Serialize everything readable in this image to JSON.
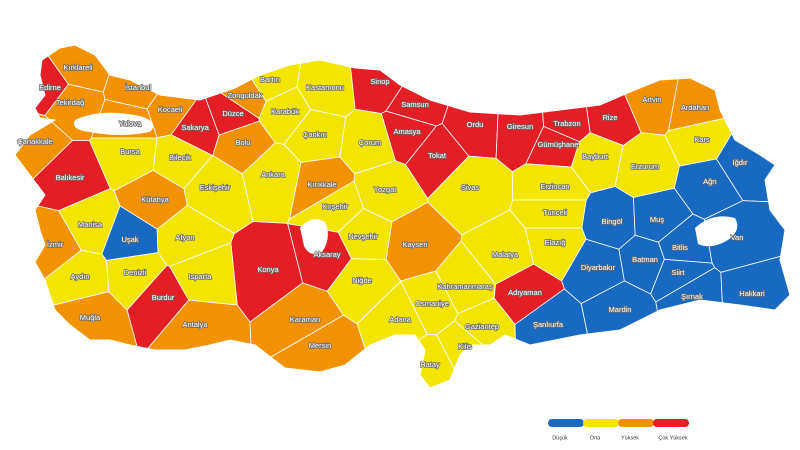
{
  "map": {
    "provinces": [
      {
        "name": "Edirne",
        "color": "#e31e24"
      },
      {
        "name": "Kırklareli",
        "color": "#f39200"
      },
      {
        "name": "İstanbul",
        "color": "#f39200"
      },
      {
        "name": "Tekirdağ",
        "color": "#f39200"
      },
      {
        "name": "Yalova",
        "color": "#f39200"
      },
      {
        "name": "Kocaeli",
        "color": "#f39200"
      },
      {
        "name": "Sakarya",
        "color": "#e31e24"
      },
      {
        "name": "Düzce",
        "color": "#e31e24"
      },
      {
        "name": "Zonguldak",
        "color": "#f39200"
      },
      {
        "name": "Bartın",
        "color": "#f4e500"
      },
      {
        "name": "Karabük",
        "color": "#f4e500"
      },
      {
        "name": "Kastamonu",
        "color": "#f4e500"
      },
      {
        "name": "Sinop",
        "color": "#e31e24"
      },
      {
        "name": "Samsun",
        "color": "#e31e24"
      },
      {
        "name": "Ordu",
        "color": "#e31e24"
      },
      {
        "name": "Giresun",
        "color": "#e31e24"
      },
      {
        "name": "Trabzon",
        "color": "#e31e24"
      },
      {
        "name": "Rize",
        "color": "#e31e24"
      },
      {
        "name": "Artvin",
        "color": "#f39200"
      },
      {
        "name": "Ardahan",
        "color": "#f39200"
      },
      {
        "name": "Kars",
        "color": "#f4e500"
      },
      {
        "name": "Çanakkale",
        "color": "#f39200"
      },
      {
        "name": "Bursa",
        "color": "#f4e500"
      },
      {
        "name": "Bilecik",
        "color": "#f4e500"
      },
      {
        "name": "Bolu",
        "color": "#f39200"
      },
      {
        "name": "Çankırı",
        "color": "#f4e500"
      },
      {
        "name": "Çorum",
        "color": "#f4e500"
      },
      {
        "name": "Amasya",
        "color": "#e31e24"
      },
      {
        "name": "Tokat",
        "color": "#e31e24"
      },
      {
        "name": "Gümüşhane",
        "color": "#e31e24"
      },
      {
        "name": "Bayburt",
        "color": "#f4e500"
      },
      {
        "name": "Erzurum",
        "color": "#f4e500"
      },
      {
        "name": "Iğdır",
        "color": "#1769c2"
      },
      {
        "name": "Ağrı",
        "color": "#1769c2"
      },
      {
        "name": "Balıkesir",
        "color": "#e31e24"
      },
      {
        "name": "Eskişehir",
        "color": "#f4e500"
      },
      {
        "name": "Ankara",
        "color": "#f4e500"
      },
      {
        "name": "Kırıkkale",
        "color": "#f39200"
      },
      {
        "name": "Yozgat",
        "color": "#f4e500"
      },
      {
        "name": "Sivas",
        "color": "#f4e500"
      },
      {
        "name": "Erzincan",
        "color": "#f4e500"
      },
      {
        "name": "Kütahya",
        "color": "#f39200"
      },
      {
        "name": "Kırşehir",
        "color": "#f4e500"
      },
      {
        "name": "Tunceli",
        "color": "#f4e500"
      },
      {
        "name": "Bingöl",
        "color": "#1769c2"
      },
      {
        "name": "Muş",
        "color": "#1769c2"
      },
      {
        "name": "Van",
        "color": "#1769c2"
      },
      {
        "name": "Bitlis",
        "color": "#1769c2"
      },
      {
        "name": "Manisa",
        "color": "#f4e500"
      },
      {
        "name": "Uşak",
        "color": "#1769c2"
      },
      {
        "name": "Afyon",
        "color": "#f4e500"
      },
      {
        "name": "Nevşehir",
        "color": "#f4e500"
      },
      {
        "name": "Kayseri",
        "color": "#f39200"
      },
      {
        "name": "Elazığ",
        "color": "#f4e500"
      },
      {
        "name": "Malatya",
        "color": "#f4e500"
      },
      {
        "name": "Diyarbakır",
        "color": "#1769c2"
      },
      {
        "name": "Batman",
        "color": "#1769c2"
      },
      {
        "name": "Siirt",
        "color": "#1769c2"
      },
      {
        "name": "İzmir",
        "color": "#f39200"
      },
      {
        "name": "Aksaray",
        "color": "#e31e24"
      },
      {
        "name": "Konya",
        "color": "#e31e24"
      },
      {
        "name": "Denizli",
        "color": "#f4e500"
      },
      {
        "name": "Aydın",
        "color": "#f4e500"
      },
      {
        "name": "Isparta",
        "color": "#f4e500"
      },
      {
        "name": "Kahramanmaraş",
        "color": "#f4e500"
      },
      {
        "name": "Adıyaman",
        "color": "#e31e24"
      },
      {
        "name": "Şırnak",
        "color": "#1769c2"
      },
      {
        "name": "Hakkari",
        "color": "#1769c2"
      },
      {
        "name": "Mardin",
        "color": "#1769c2"
      },
      {
        "name": "Niğde",
        "color": "#f4e500"
      },
      {
        "name": "Osmaniye",
        "color": "#f4e500"
      },
      {
        "name": "Burdur",
        "color": "#e31e24"
      },
      {
        "name": "Muğla",
        "color": "#f39200"
      },
      {
        "name": "Antalya",
        "color": "#f39200"
      },
      {
        "name": "Karaman",
        "color": "#f39200"
      },
      {
        "name": "Adana",
        "color": "#f4e500"
      },
      {
        "name": "Gaziantep",
        "color": "#f4e500"
      },
      {
        "name": "Şanlıurfa",
        "color": "#1769c2"
      },
      {
        "name": "Mersin",
        "color": "#f39200"
      },
      {
        "name": "Kilis",
        "color": "#f4e500"
      },
      {
        "name": "Hatay",
        "color": "#f4e500"
      }
    ],
    "legend": {
      "items": [
        {
          "label": "Düşük",
          "color": "#1769c2"
        },
        {
          "label": "Orta",
          "color": "#f4e500"
        },
        {
          "label": "Yüksek",
          "color": "#f39200"
        },
        {
          "label": "Çok Yüksek",
          "color": "#e31e24"
        }
      ]
    }
  }
}
